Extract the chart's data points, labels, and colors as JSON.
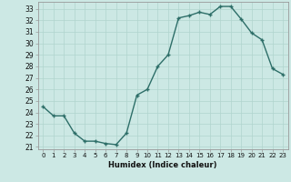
{
  "x": [
    0,
    1,
    2,
    3,
    4,
    5,
    6,
    7,
    8,
    9,
    10,
    11,
    12,
    13,
    14,
    15,
    16,
    17,
    18,
    19,
    20,
    21,
    22,
    23
  ],
  "y": [
    24.5,
    23.7,
    23.7,
    22.2,
    21.5,
    21.5,
    21.3,
    21.2,
    22.2,
    25.5,
    26.0,
    28.0,
    29.0,
    32.2,
    32.4,
    32.7,
    32.5,
    33.2,
    33.2,
    32.1,
    30.9,
    30.3,
    27.8,
    27.3
  ],
  "xlabel": "Humidex (Indice chaleur)",
  "bg_color": "#cce8e4",
  "line_color": "#2d6e68",
  "grid_color": "#b0d4ce",
  "ylim_min": 20.8,
  "ylim_max": 33.6,
  "xlim_min": -0.5,
  "xlim_max": 23.5,
  "yticks": [
    21,
    22,
    23,
    24,
    25,
    26,
    27,
    28,
    29,
    30,
    31,
    32,
    33
  ],
  "xticks": [
    0,
    1,
    2,
    3,
    4,
    5,
    6,
    7,
    8,
    9,
    10,
    11,
    12,
    13,
    14,
    15,
    16,
    17,
    18,
    19,
    20,
    21,
    22,
    23
  ]
}
